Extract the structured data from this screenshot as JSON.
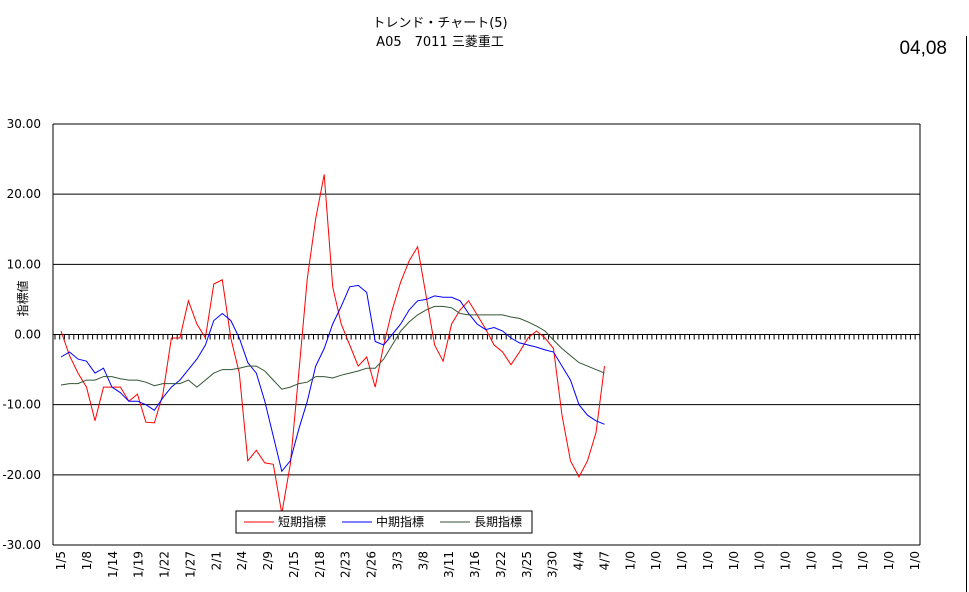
{
  "header": {
    "title": "トレンド・チャート(5)",
    "subtitle": "A05　7011 三菱重工",
    "date": "04,08"
  },
  "chart_data": {
    "type": "line",
    "title": "トレンド・チャート(5)",
    "subtitle": "A05　7011 三菱重工",
    "ylabel": "指標値",
    "xlabel": "",
    "ylim": [
      -30,
      30
    ],
    "yticks": [
      "30.00",
      "20.00",
      "10.00",
      "0.00",
      "-10.00",
      "-20.00",
      "-30.00"
    ],
    "ytick_values": [
      30,
      20,
      10,
      0,
      -10,
      -20,
      -30
    ],
    "x_labels": [
      "1/5",
      "1/8",
      "1/14",
      "1/19",
      "1/22",
      "1/27",
      "2/1",
      "2/4",
      "2/9",
      "2/15",
      "2/18",
      "2/23",
      "2/26",
      "3/3",
      "3/8",
      "3/11",
      "3/16",
      "3/22",
      "3/25",
      "3/30",
      "4/4",
      "4/7",
      "1/0",
      "1/0",
      "1/0",
      "1/0",
      "1/0",
      "1/0",
      "1/0",
      "1/0",
      "1/0",
      "1/0",
      "1/0",
      "1/0"
    ],
    "grid": "horizontal",
    "legend_position": "bottom-left",
    "colors": {
      "short": "#ff0000",
      "mid": "#0000ff",
      "long": "#335533"
    },
    "series": [
      {
        "name": "短期指標",
        "values": [
          0.5,
          -3,
          -5.5,
          -7.5,
          -12.3,
          -7.5,
          -7.5,
          -7.5,
          -9.5,
          -8.5,
          -12.5,
          -12.6,
          -8.5,
          -0.5,
          -0.5,
          4.8,
          1.5,
          -0.5,
          7.2,
          7.8,
          -0.5,
          -5.5,
          -18,
          -16.5,
          -18.3,
          -18.5,
          -25.5,
          -18.5,
          -5.5,
          8,
          16.5,
          22.8,
          6.8,
          1.5,
          -1.5,
          -4.5,
          -3.2,
          -7.5,
          -1.5,
          3.5,
          7.5,
          10.5,
          12.5,
          5.5,
          -1.5,
          -3.8,
          1.5,
          3.5,
          4.8,
          2.8,
          0.8,
          -1.5,
          -2.5,
          -4.3,
          -2.5,
          -0.5,
          0.5,
          -0.5,
          -2,
          -11.5,
          -18,
          -20.3,
          -18,
          -14,
          -4.5
        ]
      },
      {
        "name": "中期指標",
        "values": [
          -3.2,
          -2.5,
          -3.5,
          -3.8,
          -5.5,
          -4.8,
          -7.5,
          -8.3,
          -9.5,
          -9.5,
          -10,
          -10.8,
          -9,
          -7.5,
          -6.5,
          -5,
          -3.5,
          -1.5,
          2,
          3,
          2,
          -0.5,
          -4,
          -5.5,
          -9.5,
          -14.5,
          -19.5,
          -18,
          -13.5,
          -9.5,
          -4.5,
          -2,
          1.5,
          4,
          6.8,
          7,
          6,
          -1,
          -1.5,
          0,
          1.5,
          3.5,
          4.8,
          5,
          5.5,
          5.3,
          5.3,
          4.8,
          3,
          1.5,
          0.7,
          1,
          0.5,
          -0.5,
          -1.2,
          -1.5,
          -1.8,
          -2.2,
          -2.5,
          -4.5,
          -6.5,
          -10,
          -11.5,
          -12.3,
          -12.8
        ]
      },
      {
        "name": "長期指標",
        "values": [
          -7.2,
          -7,
          -7,
          -6.5,
          -6.5,
          -6,
          -6,
          -6.3,
          -6.5,
          -6.5,
          -6.8,
          -7.3,
          -7,
          -7,
          -7,
          -6.5,
          -7.5,
          -6.5,
          -5.5,
          -5,
          -5,
          -4.8,
          -4.5,
          -4.5,
          -5.2,
          -6.5,
          -7.8,
          -7.5,
          -7,
          -6.8,
          -6,
          -6,
          -6.2,
          -5.8,
          -5.5,
          -5.2,
          -4.8,
          -4.8,
          -3.5,
          -1.5,
          0.5,
          1.8,
          2.8,
          3.5,
          4,
          4,
          3.8,
          3,
          2.8,
          2.8,
          2.8,
          2.8,
          2.8,
          2.5,
          2.3,
          1.8,
          1.2,
          0.5,
          -0.8,
          -2,
          -3,
          -4,
          -4.5,
          -5,
          -5.5
        ]
      }
    ]
  }
}
